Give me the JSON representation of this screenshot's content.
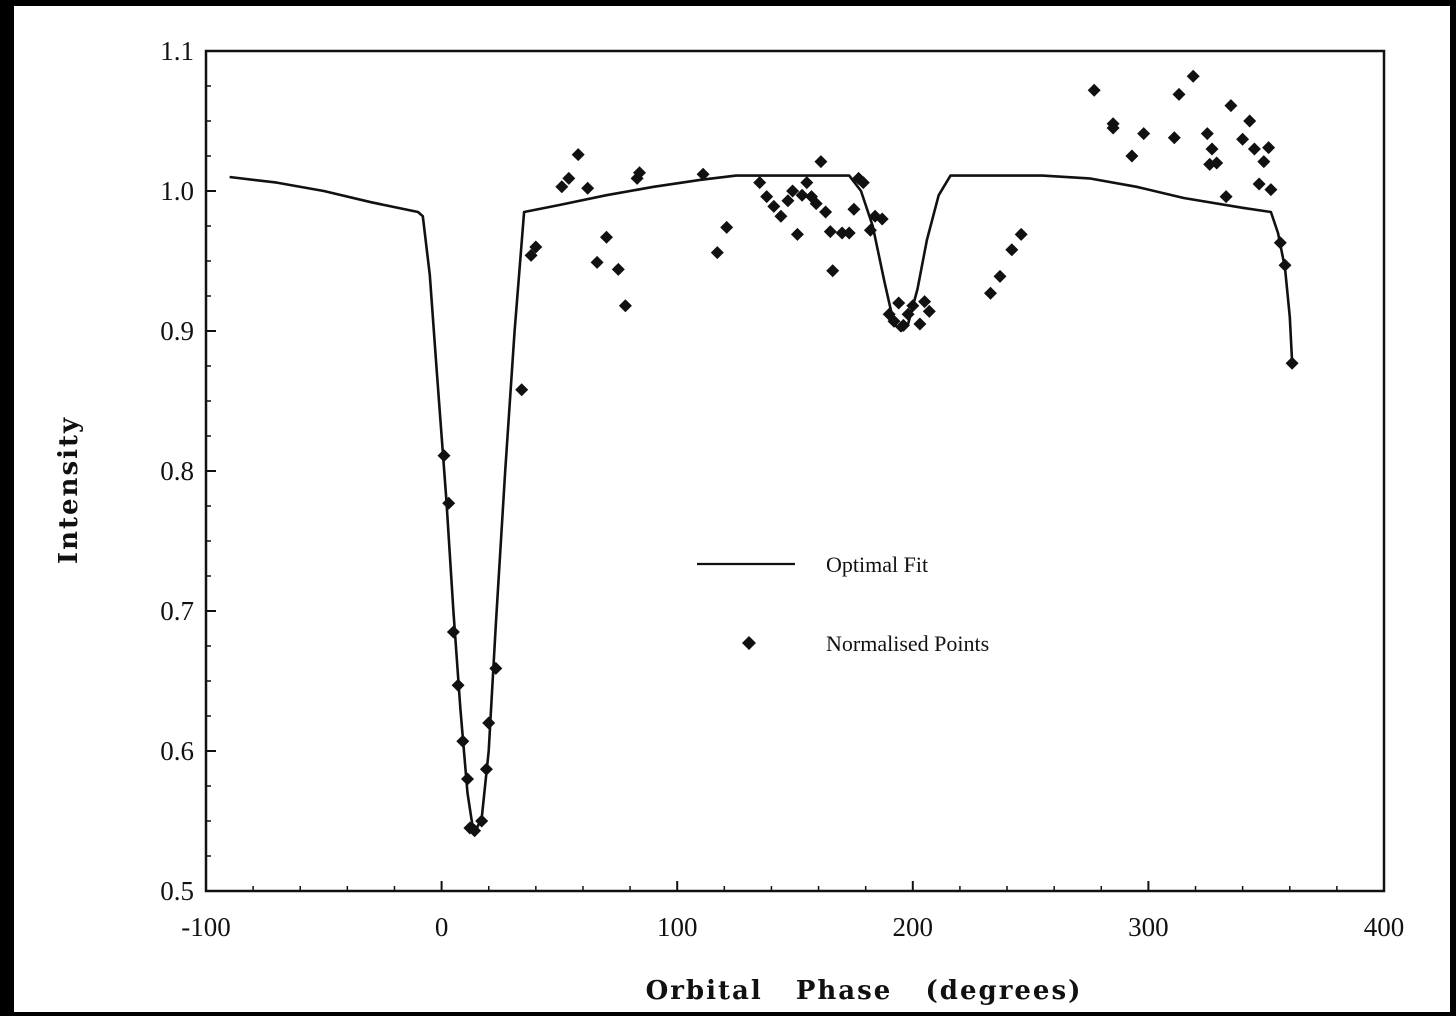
{
  "chart_data": {
    "type": "scatter",
    "title": "",
    "xlabel": "Orbital   Phase   (degrees)",
    "ylabel": "Intensity",
    "xlim": [
      -100,
      400
    ],
    "ylim": [
      0.5,
      1.1
    ],
    "x_ticks": [
      -100,
      0,
      100,
      200,
      300,
      400
    ],
    "x_tick_labels": [
      "-100",
      "0",
      "100",
      "200",
      "300",
      "400"
    ],
    "y_ticks": [
      0.5,
      0.6,
      0.7,
      0.8,
      0.9,
      1.0,
      1.1
    ],
    "y_tick_labels": [
      "0.5",
      "0.6",
      "0.7",
      "0.8",
      "0.9",
      "1.0",
      "1.1"
    ],
    "grid": false,
    "legend_position": "center",
    "series": [
      {
        "name": "Optimal Fit",
        "type": "line",
        "points": [
          [
            -90,
            1.01
          ],
          [
            -70,
            1.006
          ],
          [
            -50,
            1.0
          ],
          [
            -30,
            0.992
          ],
          [
            -10,
            0.985
          ],
          [
            -8,
            0.982
          ],
          [
            -5,
            0.94
          ],
          [
            -2,
            0.87
          ],
          [
            2,
            0.78
          ],
          [
            5,
            0.7
          ],
          [
            8,
            0.63
          ],
          [
            11,
            0.57
          ],
          [
            13,
            0.548
          ],
          [
            15,
            0.545
          ],
          [
            17,
            0.552
          ],
          [
            20,
            0.6
          ],
          [
            23,
            0.69
          ],
          [
            27,
            0.8
          ],
          [
            31,
            0.9
          ],
          [
            35,
            0.985
          ],
          [
            50,
            0.99
          ],
          [
            70,
            0.997
          ],
          [
            90,
            1.003
          ],
          [
            110,
            1.008
          ],
          [
            125,
            1.011
          ],
          [
            173,
            1.011
          ],
          [
            178,
            1.0
          ],
          [
            183,
            0.975
          ],
          [
            188,
            0.935
          ],
          [
            192,
            0.905
          ],
          [
            195,
            0.9
          ],
          [
            198,
            0.905
          ],
          [
            202,
            0.93
          ],
          [
            206,
            0.965
          ],
          [
            211,
            0.997
          ],
          [
            216,
            1.011
          ],
          [
            255,
            1.011
          ],
          [
            275,
            1.009
          ],
          [
            295,
            1.003
          ],
          [
            315,
            0.995
          ],
          [
            340,
            0.988
          ],
          [
            352,
            0.985
          ],
          [
            355,
            0.97
          ],
          [
            358,
            0.945
          ],
          [
            360,
            0.91
          ],
          [
            361,
            0.878
          ]
        ]
      },
      {
        "name": "Normalised Points",
        "type": "scatter",
        "points": [
          [
            1,
            0.811
          ],
          [
            3,
            0.777
          ],
          [
            5,
            0.685
          ],
          [
            7,
            0.647
          ],
          [
            9,
            0.607
          ],
          [
            11,
            0.58
          ],
          [
            12,
            0.545
          ],
          [
            14,
            0.543
          ],
          [
            17,
            0.55
          ],
          [
            19,
            0.587
          ],
          [
            20,
            0.62
          ],
          [
            23,
            0.659
          ],
          [
            34,
            0.858
          ],
          [
            38,
            0.954
          ],
          [
            40,
            0.96
          ],
          [
            51,
            1.003
          ],
          [
            54,
            1.009
          ],
          [
            58,
            1.026
          ],
          [
            62,
            1.002
          ],
          [
            66,
            0.949
          ],
          [
            70,
            0.967
          ],
          [
            75,
            0.944
          ],
          [
            78,
            0.918
          ],
          [
            83,
            1.009
          ],
          [
            84,
            1.013
          ],
          [
            111,
            1.012
          ],
          [
            117,
            0.956
          ],
          [
            121,
            0.974
          ],
          [
            135,
            1.006
          ],
          [
            138,
            0.996
          ],
          [
            141,
            0.989
          ],
          [
            144,
            0.982
          ],
          [
            147,
            0.993
          ],
          [
            149,
            1.0
          ],
          [
            151,
            0.969
          ],
          [
            153,
            0.997
          ],
          [
            155,
            1.006
          ],
          [
            157,
            0.996
          ],
          [
            159,
            0.991
          ],
          [
            161,
            1.021
          ],
          [
            163,
            0.985
          ],
          [
            165,
            0.971
          ],
          [
            166,
            0.943
          ],
          [
            170,
            0.97
          ],
          [
            173,
            0.97
          ],
          [
            175,
            0.987
          ],
          [
            177,
            1.009
          ],
          [
            179,
            1.006
          ],
          [
            182,
            0.972
          ],
          [
            184,
            0.982
          ],
          [
            187,
            0.98
          ],
          [
            190,
            0.912
          ],
          [
            192,
            0.907
          ],
          [
            194,
            0.92
          ],
          [
            196,
            0.904
          ],
          [
            198,
            0.912
          ],
          [
            200,
            0.918
          ],
          [
            203,
            0.905
          ],
          [
            205,
            0.921
          ],
          [
            207,
            0.914
          ],
          [
            233,
            0.927
          ],
          [
            237,
            0.939
          ],
          [
            242,
            0.958
          ],
          [
            246,
            0.969
          ],
          [
            277,
            1.072
          ],
          [
            285,
            1.048
          ],
          [
            285,
            1.045
          ],
          [
            293,
            1.025
          ],
          [
            298,
            1.041
          ],
          [
            311,
            1.038
          ],
          [
            313,
            1.069
          ],
          [
            319,
            1.082
          ],
          [
            325,
            1.041
          ],
          [
            326,
            1.019
          ],
          [
            327,
            1.03
          ],
          [
            329,
            1.02
          ],
          [
            333,
            0.996
          ],
          [
            335,
            1.061
          ],
          [
            340,
            1.037
          ],
          [
            343,
            1.05
          ],
          [
            345,
            1.03
          ],
          [
            347,
            1.005
          ],
          [
            349,
            1.021
          ],
          [
            351,
            1.031
          ],
          [
            352,
            1.001
          ],
          [
            356,
            0.963
          ],
          [
            358,
            0.947
          ],
          [
            361,
            0.877
          ]
        ]
      }
    ]
  }
}
